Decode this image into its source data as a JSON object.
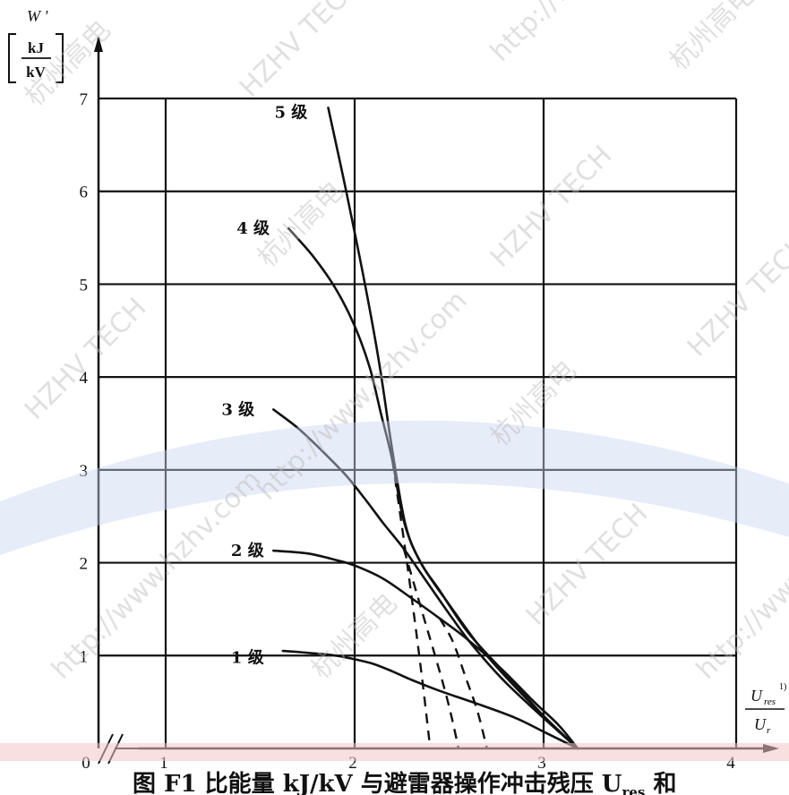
{
  "chart_data": {
    "type": "line",
    "title": "",
    "xlabel_num": "U",
    "xlabel_num_sub": "res",
    "xlabel_sup": "1)",
    "xlabel_den": "U",
    "xlabel_den_sub": "r",
    "ylabel": "W '",
    "yunit_num": "kJ",
    "yunit_den": "kV",
    "origin_label": "0",
    "xlim": [
      1,
      4
    ],
    "ylim": [
      0,
      7
    ],
    "x_ticks": [
      1,
      2,
      3,
      4
    ],
    "y_ticks": [
      1,
      2,
      3,
      4,
      5,
      6,
      7
    ],
    "grid": true,
    "axis_break": true,
    "series": [
      {
        "name": "1 级",
        "curve": [
          [
            1.62,
            1.05
          ],
          [
            1.75,
            1.03
          ],
          [
            1.9,
            1.0
          ],
          [
            2.0,
            0.96
          ],
          [
            2.1,
            0.91
          ],
          [
            2.2,
            0.83
          ],
          [
            2.3,
            0.74
          ],
          [
            2.45,
            0.62
          ],
          [
            2.65,
            0.48
          ],
          [
            2.85,
            0.33
          ],
          [
            3.0,
            0.18
          ],
          [
            3.18,
            0.0
          ]
        ],
        "extension": []
      },
      {
        "name": "2 级",
        "curve": [
          [
            1.57,
            2.13
          ],
          [
            1.75,
            2.1
          ],
          [
            1.9,
            2.03
          ],
          [
            2.0,
            1.97
          ],
          [
            2.15,
            1.83
          ],
          [
            2.3,
            1.62
          ],
          [
            2.45,
            1.4
          ],
          [
            2.6,
            1.17
          ],
          [
            2.78,
            0.85
          ],
          [
            2.95,
            0.5
          ],
          [
            3.08,
            0.25
          ],
          [
            3.18,
            0.0
          ]
        ],
        "extension": [
          [
            2.45,
            1.4
          ],
          [
            2.52,
            1.15
          ],
          [
            2.59,
            0.75
          ],
          [
            2.65,
            0.4
          ],
          [
            2.7,
            0.0
          ]
        ]
      },
      {
        "name": "3 级",
        "curve": [
          [
            1.57,
            3.65
          ],
          [
            1.7,
            3.45
          ],
          [
            1.82,
            3.22
          ],
          [
            1.95,
            2.95
          ],
          [
            2.05,
            2.7
          ],
          [
            2.15,
            2.43
          ],
          [
            2.26,
            2.15
          ],
          [
            2.38,
            1.8
          ],
          [
            2.5,
            1.45
          ],
          [
            2.62,
            1.12
          ],
          [
            2.78,
            0.75
          ],
          [
            2.95,
            0.42
          ],
          [
            3.18,
            0.0
          ]
        ],
        "extension": [
          [
            2.26,
            2.15
          ],
          [
            2.36,
            1.45
          ],
          [
            2.44,
            0.9
          ],
          [
            2.5,
            0.45
          ],
          [
            2.55,
            0.0
          ]
        ]
      },
      {
        "name": "4 级",
        "curve": [
          [
            1.65,
            5.6
          ],
          [
            1.78,
            5.3
          ],
          [
            1.9,
            4.95
          ],
          [
            2.0,
            4.55
          ],
          [
            2.08,
            4.1
          ],
          [
            2.14,
            3.6
          ],
          [
            2.2,
            3.1
          ],
          [
            2.26,
            2.45
          ],
          [
            2.35,
            2.0
          ],
          [
            2.5,
            1.55
          ],
          [
            2.7,
            1.0
          ],
          [
            2.95,
            0.45
          ],
          [
            3.18,
            0.0
          ]
        ],
        "extension": [
          [
            2.2,
            3.1
          ],
          [
            2.26,
            2.25
          ],
          [
            2.32,
            1.35
          ],
          [
            2.36,
            0.7
          ],
          [
            2.4,
            0.0
          ]
        ]
      },
      {
        "name": "5 级",
        "curve": [
          [
            1.86,
            6.9
          ],
          [
            1.95,
            6.05
          ],
          [
            2.05,
            5.05
          ],
          [
            2.13,
            4.15
          ],
          [
            2.2,
            3.2
          ],
          [
            2.27,
            2.4
          ],
          [
            2.35,
            2.0
          ],
          [
            2.45,
            1.7
          ],
          [
            2.6,
            1.25
          ],
          [
            2.8,
            0.8
          ],
          [
            3.0,
            0.35
          ],
          [
            3.18,
            0.0
          ]
        ],
        "extension": []
      }
    ],
    "series_label_points": [
      [
        1.52,
        0.98
      ],
      [
        1.52,
        2.13
      ],
      [
        1.47,
        3.65
      ],
      [
        1.55,
        5.6
      ],
      [
        1.75,
        6.85
      ]
    ]
  },
  "caption_text": "图 F1  比能量 kJ/kV 与避雷器操作冲击残压 U",
  "caption_sub": "res",
  "caption_tail": " 和",
  "watermark_texts": [
    "杭州高电",
    "HZHV TECH",
    "http://www.hzhv.com"
  ]
}
